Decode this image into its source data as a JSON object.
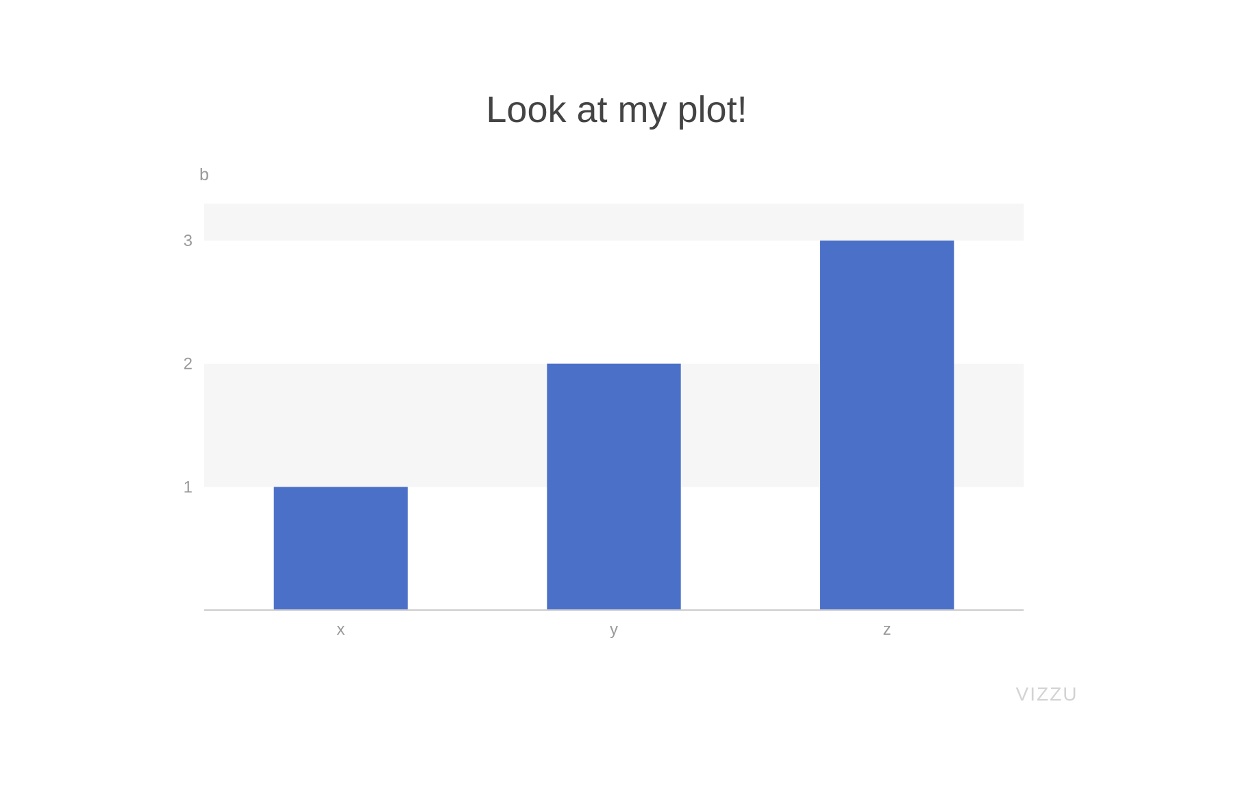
{
  "chart_data": {
    "type": "bar",
    "title": "Look at my plot!",
    "xlabel": "",
    "ylabel": "b",
    "categories": [
      "x",
      "y",
      "z"
    ],
    "values": [
      1,
      2,
      3
    ],
    "ylim": [
      0,
      3.3
    ],
    "yticks": [
      1,
      2,
      3
    ],
    "grid": "alternating bands",
    "colors": {
      "bar": "#4b70c8",
      "band": "#f6f6f6",
      "axis": "#cccccc",
      "text": "#999999",
      "title": "#444444",
      "watermark": "#d3d3d3"
    }
  },
  "branding": {
    "watermark": "VIZZU"
  }
}
